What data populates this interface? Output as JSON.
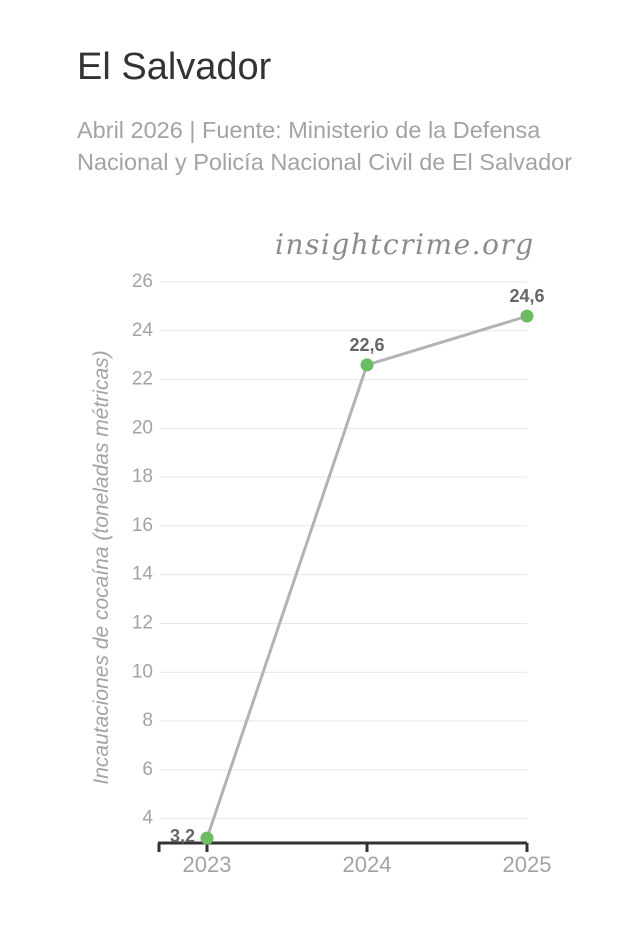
{
  "header": {
    "title": "El Salvador",
    "subtitle": "Abril 2026 | Fuente: Ministerio de la Defensa Nacional y Policía Nacional Civil de El Salvador",
    "watermark": "insightcrime.org"
  },
  "colors": {
    "line": "#b3b3b3",
    "marker": "#6dbb63",
    "grid": "#e6e6e6",
    "axis": "#333333",
    "muted_text": "#a3a3a3",
    "label_text": "#666666"
  },
  "chart_data": {
    "type": "line",
    "title": "El Salvador",
    "subtitle": "Abril 2026 | Fuente: Ministerio de la Defensa Nacional y Policía Nacional Civil de El Salvador",
    "xlabel": "",
    "ylabel": "Incautaciones de cocaína (toneladas métricas)",
    "x": [
      "2023",
      "2024",
      "2025"
    ],
    "series": [
      {
        "values": [
          3.2,
          22.6,
          24.6
        ],
        "labels": [
          "3,2",
          "22,6",
          "24,6"
        ]
      }
    ],
    "ylim": [
      3,
      26
    ],
    "yticks": [
      4,
      6,
      8,
      10,
      12,
      14,
      16,
      18,
      20,
      22,
      24,
      26
    ],
    "grid": true,
    "legend": "none"
  }
}
